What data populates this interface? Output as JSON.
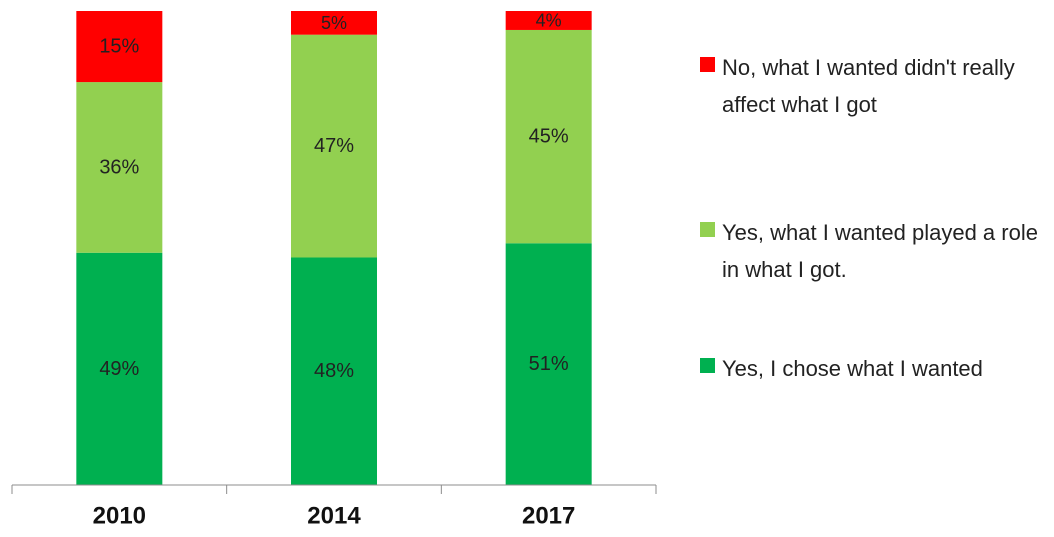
{
  "chart_data": {
    "type": "bar",
    "stacked": true,
    "categories": [
      "2010",
      "2014",
      "2017"
    ],
    "series": [
      {
        "name": "Yes, I chose what I wanted",
        "color": "#00b050",
        "values": [
          49,
          48,
          51
        ],
        "labels": [
          "49%",
          "48%",
          "51%"
        ]
      },
      {
        "name": "Yes, what I wanted played a role in what I got.",
        "color": "#92d050",
        "values": [
          36,
          47,
          45
        ],
        "labels": [
          "36%",
          "47%",
          "45%"
        ]
      },
      {
        "name": "No, what I wanted didn't really affect what I got",
        "color": "#ff0000",
        "values": [
          15,
          5,
          4
        ],
        "labels": [
          "15%",
          "5%",
          "4%"
        ]
      }
    ],
    "ylim": [
      0,
      100
    ],
    "legend_position": "right"
  },
  "legend": [
    {
      "label": "No, what I wanted didn't really affect what I got",
      "color": "#ff0000"
    },
    {
      "label": "Yes, what I wanted played a role in what I got.",
      "color": "#92d050"
    },
    {
      "label": "Yes, I chose what I wanted",
      "color": "#00b050"
    }
  ]
}
